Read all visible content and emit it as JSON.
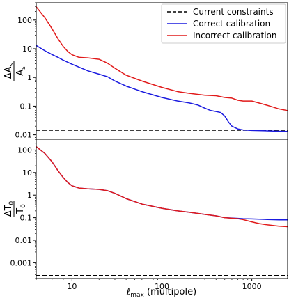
{
  "colors": {
    "constraint": "#000000",
    "correct": "#1a1adf",
    "incorrect": "#e11a1a",
    "axis": "#000000"
  },
  "legend": {
    "items": [
      {
        "label": "Current constraints",
        "color": "#000000",
        "style": "dashed"
      },
      {
        "label": "Correct calibration",
        "color": "#1a1adf",
        "style": "solid"
      },
      {
        "label": "Incorrect calibration",
        "color": "#e11a1a",
        "style": "solid"
      }
    ],
    "placement": "top-right"
  },
  "chart_data": {
    "type": "line",
    "xlabel_main": "ℓ",
    "xlabel_sub": "max",
    "xlabel_rest": " (multipole)",
    "xscale": "log",
    "xlim": [
      4,
      2500
    ],
    "xticks": [
      {
        "v": 10,
        "label": "10"
      },
      {
        "v": 100,
        "label": "100"
      },
      {
        "v": 1000,
        "label": "1000"
      }
    ],
    "panels": [
      {
        "id": "top",
        "ylabel_num": "ΔA",
        "ylabel_num_sub": "s",
        "ylabel_den": "A",
        "ylabel_den_sub": "s",
        "yscale": "log",
        "ylim": [
          0.007,
          400
        ],
        "yticks": [
          {
            "v": 0.01,
            "label": "0.01"
          },
          {
            "v": 0.1,
            "label": "0.1"
          },
          {
            "v": 1,
            "label": "1"
          },
          {
            "v": 10,
            "label": "10"
          },
          {
            "v": 100,
            "label": "100"
          }
        ],
        "series": [
          {
            "name": "Current constraints",
            "key": "constraint",
            "style": "dashed",
            "x": [
              4,
              2500
            ],
            "y": [
              0.0145,
              0.0145
            ]
          },
          {
            "name": "Correct calibration",
            "key": "correct",
            "style": "solid",
            "x": [
              4,
              5,
              6,
              7,
              8,
              10,
              15,
              20,
              25,
              30,
              40,
              60,
              100,
              150,
              200,
              250,
              300,
              350,
              400,
              450,
              500,
              550,
              600,
              700,
              800,
              1000,
              1500,
              2000,
              2500
            ],
            "y": [
              13,
              8.5,
              6.3,
              5,
              4,
              2.9,
              1.7,
              1.3,
              1.05,
              0.75,
              0.5,
              0.32,
              0.2,
              0.15,
              0.13,
              0.11,
              0.085,
              0.07,
              0.065,
              0.06,
              0.045,
              0.028,
              0.02,
              0.016,
              0.0148,
              0.0142,
              0.0137,
              0.0133,
              0.0131
            ]
          },
          {
            "name": "Incorrect calibration",
            "key": "incorrect",
            "style": "solid",
            "x": [
              4,
              5,
              6,
              7,
              8,
              9,
              10,
              12,
              15,
              20,
              25,
              30,
              40,
              60,
              100,
              150,
              200,
              300,
              400,
              500,
              600,
              700,
              800,
              1000,
              1300,
              1600,
              2000,
              2500
            ],
            "y": [
              290,
              120,
              50,
              22,
              12,
              8,
              6.2,
              5,
              4.8,
              4.3,
              3.1,
              2.1,
              1.2,
              0.75,
              0.45,
              0.32,
              0.28,
              0.24,
              0.23,
              0.2,
              0.19,
              0.16,
              0.15,
              0.15,
              0.12,
              0.1,
              0.08,
              0.07
            ]
          }
        ]
      },
      {
        "id": "bottom",
        "ylabel_num": "ΔT",
        "ylabel_num_sub": "0",
        "ylabel_den": "T",
        "ylabel_den_sub": "0",
        "yscale": "log",
        "ylim": [
          0.0002,
          300
        ],
        "yticks": [
          {
            "v": 0.001,
            "label": "0.001"
          },
          {
            "v": 0.01,
            "label": "0.01"
          },
          {
            "v": 0.1,
            "label": "0.1"
          },
          {
            "v": 1,
            "label": "1"
          },
          {
            "v": 10,
            "label": "10"
          },
          {
            "v": 100,
            "label": "100"
          }
        ],
        "series": [
          {
            "name": "Current constraints",
            "key": "constraint",
            "style": "dashed",
            "x": [
              4,
              2500
            ],
            "y": [
              0.00027,
              0.00027
            ]
          },
          {
            "name": "Correct calibration",
            "key": "correct",
            "style": "solid",
            "x": [
              4,
              5,
              6,
              7,
              8,
              9,
              10,
              12,
              15,
              20,
              25,
              30,
              40,
              60,
              100,
              150,
              200,
              300,
              400,
              500,
              700,
              800,
              1000,
              1500,
              2000,
              2500
            ],
            "y": [
              140,
              70,
              30,
              12,
              6,
              3.6,
              2.6,
              2.05,
              1.9,
              1.8,
              1.55,
              1.2,
              0.7,
              0.4,
              0.26,
              0.2,
              0.175,
              0.14,
              0.12,
              0.1,
              0.093,
              0.09,
              0.088,
              0.083,
              0.08,
              0.08
            ]
          },
          {
            "name": "Incorrect calibration",
            "key": "incorrect",
            "style": "solid",
            "x": [
              4,
              5,
              6,
              7,
              8,
              9,
              10,
              12,
              15,
              20,
              25,
              30,
              40,
              60,
              100,
              150,
              200,
              300,
              400,
              500,
              700,
              800,
              1000,
              1200,
              1500,
              2000,
              2500
            ],
            "y": [
              140,
              70,
              30,
              12,
              6,
              3.6,
              2.6,
              2.05,
              1.9,
              1.8,
              1.55,
              1.2,
              0.7,
              0.4,
              0.26,
              0.2,
              0.175,
              0.14,
              0.12,
              0.1,
              0.09,
              0.082,
              0.065,
              0.055,
              0.048,
              0.042,
              0.04
            ]
          }
        ]
      }
    ]
  }
}
